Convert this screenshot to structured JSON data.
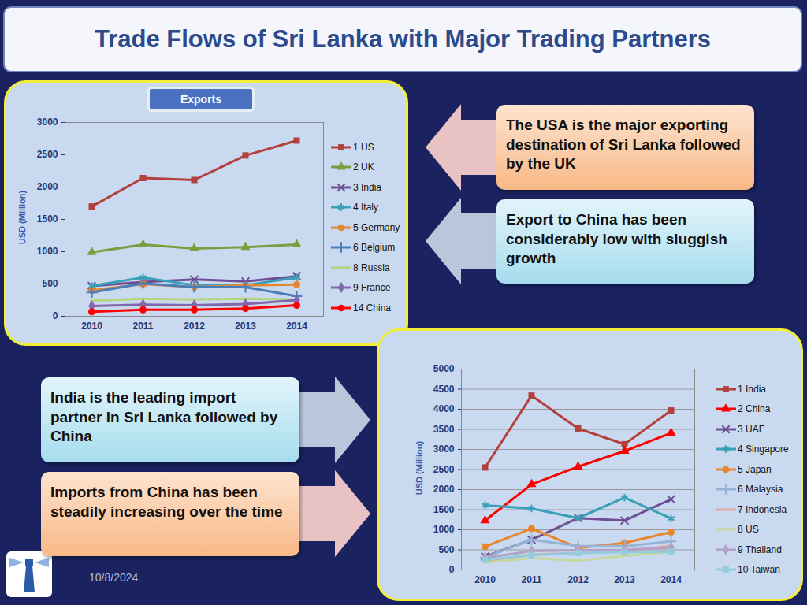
{
  "slide": {
    "title": "Trade Flows of Sri Lanka with Major Trading Partners",
    "date": "10/8/2024",
    "callouts": [
      {
        "text": "The USA is the major exporting destination of Sri Lanka followed by the UK",
        "color": "peach"
      },
      {
        "text": "Export to China has been considerably low with sluggish growth",
        "color": "blue"
      },
      {
        "text": "India is the leading import partner in Sri Lanka followed by China",
        "color": "blue"
      },
      {
        "text": "Imports from China has been steadily increasing over the time",
        "color": "peach"
      }
    ]
  },
  "chart_data": [
    {
      "type": "line",
      "title": "Exports",
      "y_label": "USD (Million)",
      "categories": [
        "2010",
        "2011",
        "2012",
        "2013",
        "2014"
      ],
      "ylim": [
        0,
        3000
      ],
      "yticks": [
        0,
        500,
        1000,
        1500,
        2000,
        2500,
        3000
      ],
      "grid": false,
      "legend": "right",
      "series": [
        {
          "name": "1 US",
          "color": "#b2403d",
          "marker": "square",
          "values": [
            1700,
            2140,
            2110,
            2490,
            2720
          ]
        },
        {
          "name": "2 UK",
          "color": "#77a03c",
          "marker": "triangle",
          "values": [
            990,
            1110,
            1050,
            1070,
            1110
          ]
        },
        {
          "name": "3 India",
          "color": "#6e4f96",
          "marker": "times",
          "values": [
            470,
            530,
            570,
            540,
            620
          ]
        },
        {
          "name": "4 Italy",
          "color": "#3aa0b8",
          "marker": "asterisk",
          "values": [
            470,
            600,
            480,
            480,
            600
          ]
        },
        {
          "name": "5 Germany",
          "color": "#e6862e",
          "marker": "circle",
          "values": [
            400,
            500,
            450,
            480,
            490
          ]
        },
        {
          "name": "6 Belgium",
          "color": "#4a7ebb",
          "marker": "plus",
          "values": [
            370,
            510,
            450,
            450,
            310
          ]
        },
        {
          "name": "8 Russia",
          "color": "#b6d47c",
          "marker": "none",
          "values": [
            240,
            270,
            260,
            270,
            260
          ]
        },
        {
          "name": "9 France",
          "color": "#8466ad",
          "marker": "diamond",
          "values": [
            160,
            180,
            170,
            190,
            250
          ]
        },
        {
          "name": "14 China",
          "color": "#ff0000",
          "marker": "circle",
          "values": [
            70,
            100,
            100,
            120,
            170
          ]
        }
      ]
    },
    {
      "type": "line",
      "y_label": "USD (Million)",
      "categories": [
        "2010",
        "2011",
        "2012",
        "2013",
        "2014"
      ],
      "ylim": [
        0,
        5000
      ],
      "yticks": [
        0,
        500,
        1000,
        1500,
        2000,
        2500,
        3000,
        3500,
        4000,
        4500,
        5000
      ],
      "grid": true,
      "legend": "right",
      "series": [
        {
          "name": "1 India",
          "color": "#b2403d",
          "marker": "square",
          "values": [
            2550,
            4340,
            3520,
            3130,
            3970
          ]
        },
        {
          "name": "2 China",
          "color": "#ff0000",
          "marker": "triangle",
          "values": [
            1230,
            2130,
            2570,
            2960,
            3410
          ]
        },
        {
          "name": "3 UAE",
          "color": "#6e4f96",
          "marker": "times",
          "values": [
            330,
            750,
            1290,
            1230,
            1760
          ]
        },
        {
          "name": "4 Singapore",
          "color": "#3aa0b8",
          "marker": "asterisk",
          "values": [
            1610,
            1530,
            1290,
            1800,
            1280
          ]
        },
        {
          "name": "5 Japan",
          "color": "#e6862e",
          "marker": "circle",
          "values": [
            580,
            1030,
            550,
            670,
            940
          ]
        },
        {
          "name": "6 Malaysia",
          "color": "#95b3d7",
          "marker": "plus",
          "values": [
            310,
            750,
            600,
            590,
            710
          ]
        },
        {
          "name": "7 Indonesia",
          "color": "#e6a29e",
          "marker": "none",
          "values": [
            220,
            380,
            420,
            470,
            600
          ]
        },
        {
          "name": "8 US",
          "color": "#c4d99b",
          "marker": "none",
          "values": [
            180,
            300,
            230,
            350,
            450
          ]
        },
        {
          "name": "9 Thailand",
          "color": "#b3a2c7",
          "marker": "diamond",
          "values": [
            300,
            470,
            490,
            500,
            560
          ]
        },
        {
          "name": "10 Taiwan",
          "color": "#93cddd",
          "marker": "square",
          "values": [
            250,
            370,
            420,
            440,
            450
          ]
        }
      ]
    }
  ]
}
